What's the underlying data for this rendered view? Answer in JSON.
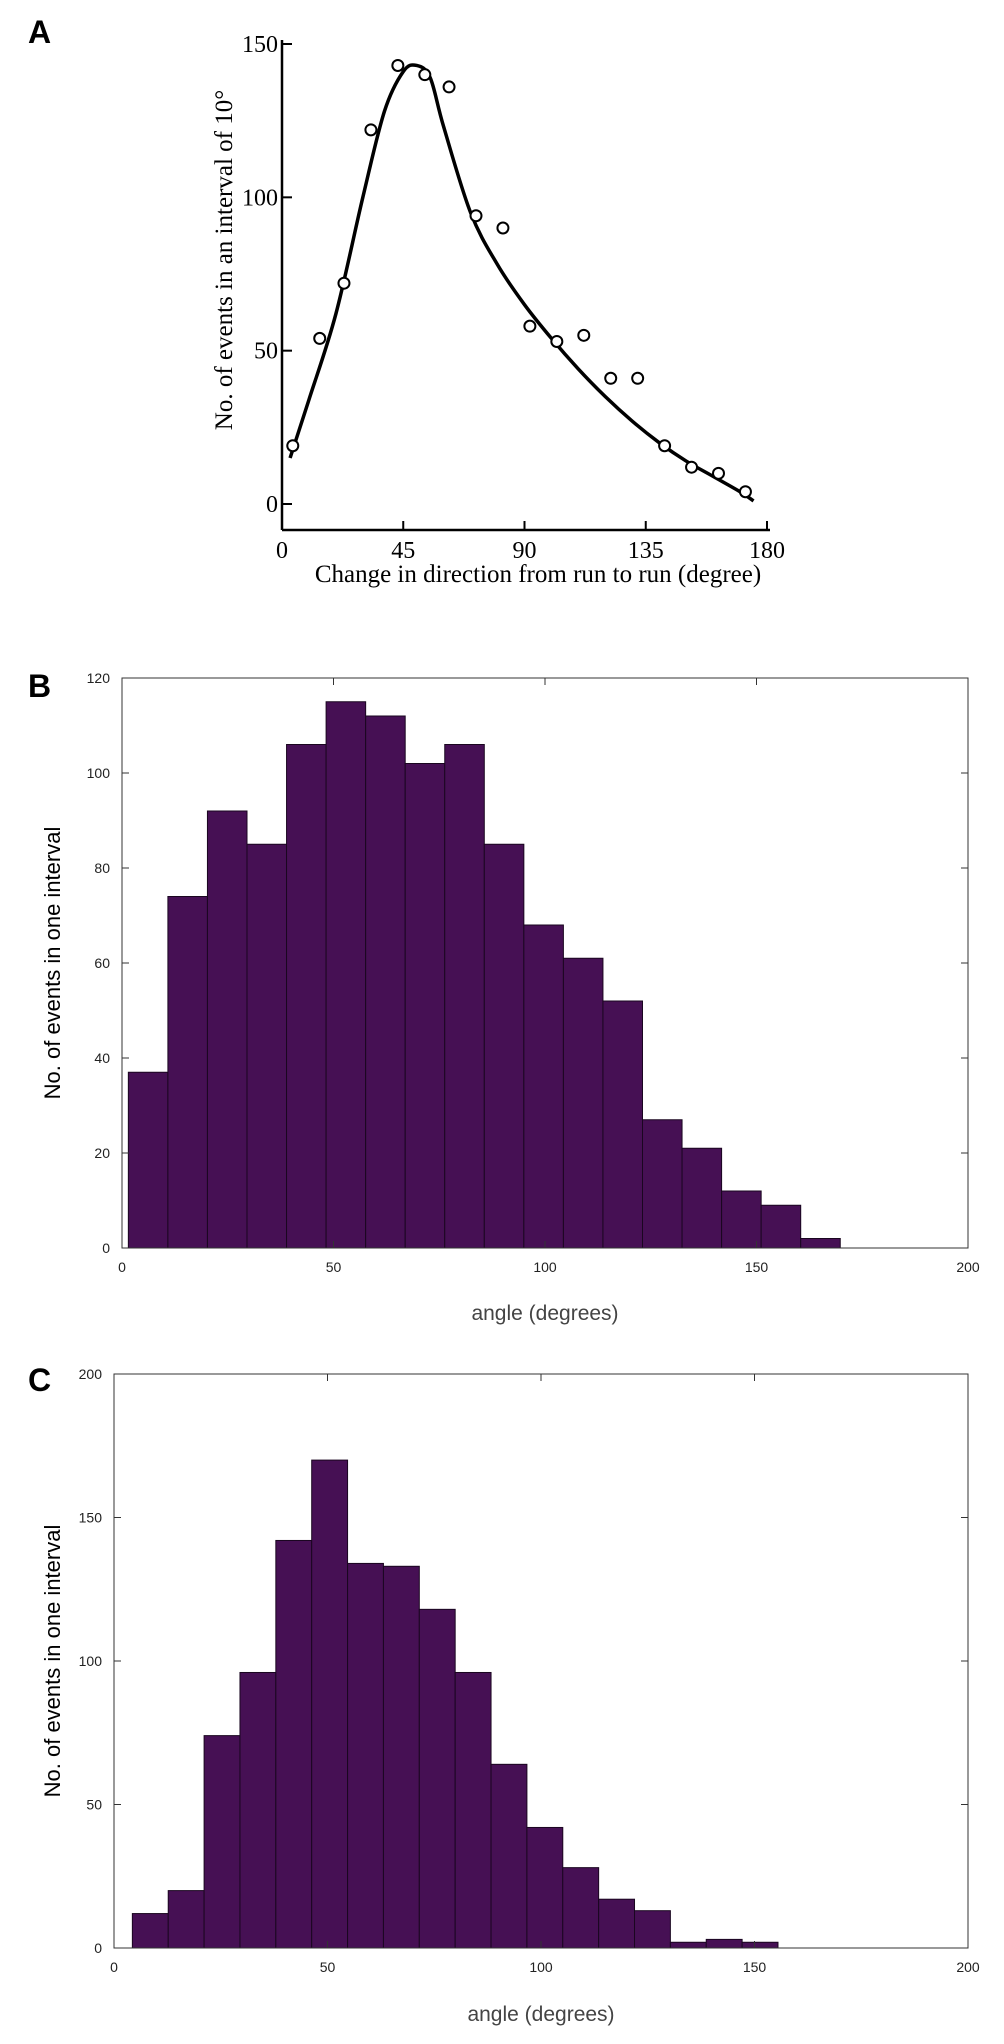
{
  "panels": {
    "a": "A",
    "b": "B",
    "c": "C"
  },
  "colors": {
    "bar_fill": "#461054",
    "bar_edge": "#1a0620",
    "axis": "#000000",
    "box": "#333333"
  },
  "chart_data": [
    {
      "type": "scatter",
      "panel": "A",
      "title": "",
      "xlabel": "Change in direction from run to run (degree)",
      "ylabel": "No. of events in an interval of 10°",
      "xlim": [
        0,
        180
      ],
      "ylim": [
        0,
        150
      ],
      "x_ticks": [
        "0",
        "45",
        "90",
        "135",
        "180"
      ],
      "y_ticks": [
        "0",
        "50",
        "100",
        "150"
      ],
      "grid": false,
      "points": {
        "x": [
          4,
          14,
          23,
          33,
          43,
          53,
          62,
          72,
          82,
          92,
          102,
          112,
          122,
          132,
          142,
          152,
          162,
          172
        ],
        "y": [
          19,
          54,
          72,
          122,
          143,
          140,
          136,
          94,
          90,
          58,
          53,
          55,
          41,
          41,
          19,
          12,
          10,
          4
        ]
      },
      "fit_curve": {
        "x": [
          3,
          10,
          20,
          30,
          38,
          45,
          50,
          55,
          60,
          70,
          80,
          90,
          100,
          110,
          120,
          130,
          140,
          150,
          160,
          170,
          175
        ],
        "y": [
          15,
          34,
          62,
          100,
          128,
          141,
          143,
          139,
          123,
          95,
          78,
          65,
          54,
          44,
          35,
          27,
          20,
          14,
          9,
          4,
          1
        ]
      }
    },
    {
      "type": "bar",
      "panel": "B",
      "title": "",
      "xlabel": "angle (degrees)",
      "ylabel": "No. of events in one interval",
      "xlim": [
        0,
        200
      ],
      "ylim": [
        0,
        120
      ],
      "x_ticks": [
        "0",
        "50",
        "100",
        "150",
        "200"
      ],
      "y_ticks": [
        "0",
        "20",
        "40",
        "60",
        "80",
        "100",
        "120"
      ],
      "bin_width": 9.35,
      "bin_starts": [
        1.5,
        10.85,
        20.2,
        29.55,
        38.9,
        48.25,
        57.6,
        66.95,
        76.3,
        85.65,
        95.0,
        104.35,
        113.7,
        123.05,
        132.4,
        141.75,
        151.1,
        160.45
      ],
      "values": [
        37,
        74,
        92,
        85,
        106,
        115,
        112,
        102,
        106,
        85,
        68,
        61,
        52,
        27,
        21,
        12,
        9,
        2
      ],
      "grid": false
    },
    {
      "type": "bar",
      "panel": "C",
      "title": "",
      "xlabel": "angle (degrees)",
      "ylabel": "No. of events in one interval",
      "xlim": [
        0,
        200
      ],
      "ylim": [
        0,
        200
      ],
      "x_ticks": [
        "0",
        "50",
        "100",
        "150",
        "200"
      ],
      "y_ticks": [
        "0",
        "50",
        "100",
        "150",
        "200"
      ],
      "bin_width": 8.4,
      "bin_starts": [
        4.3,
        12.7,
        21.1,
        29.5,
        37.9,
        46.3,
        54.7,
        63.1,
        71.5,
        79.9,
        88.3,
        96.7,
        105.1,
        113.5,
        121.9,
        130.3,
        138.7,
        147.1
      ],
      "values": [
        12,
        20,
        74,
        96,
        142,
        170,
        134,
        133,
        118,
        96,
        64,
        42,
        28,
        17,
        13,
        2,
        3,
        2
      ],
      "grid": false
    }
  ]
}
